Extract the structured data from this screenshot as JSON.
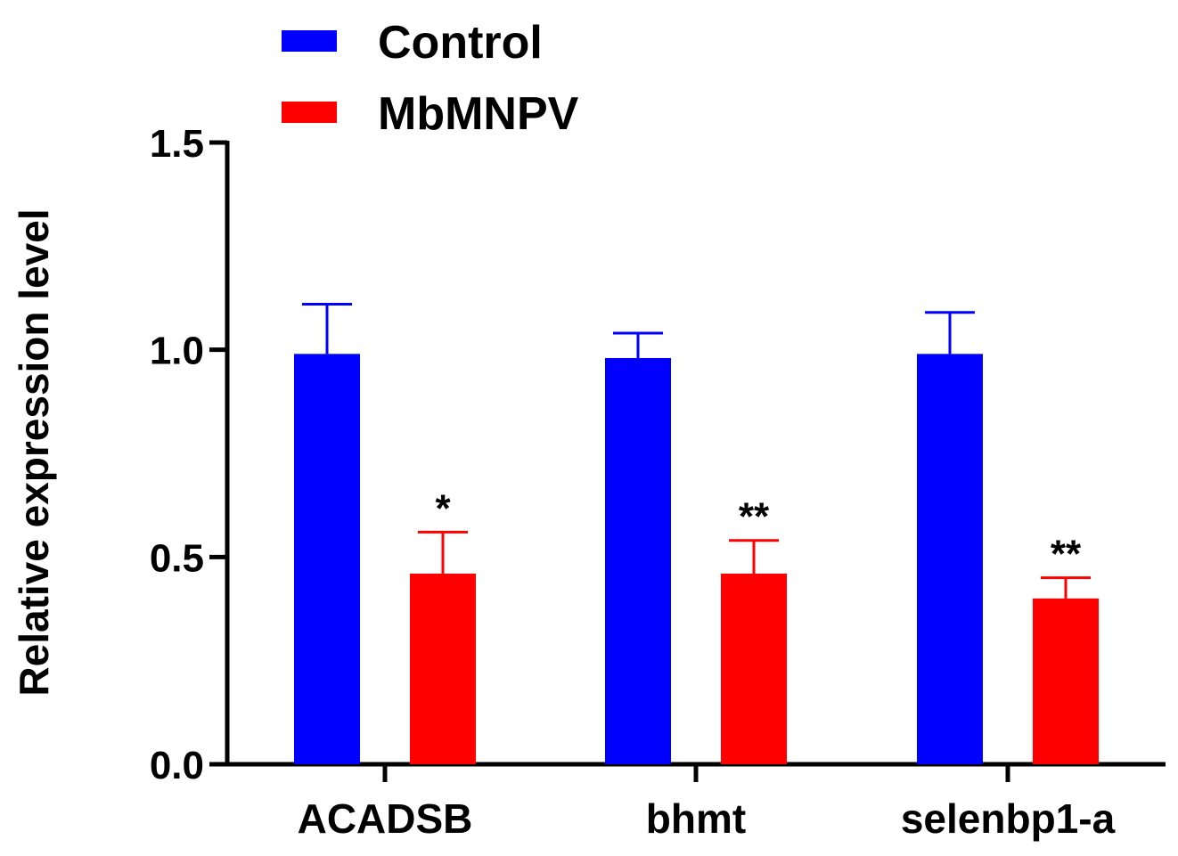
{
  "chart_data": {
    "type": "bar",
    "ylabel": "Relative expression level",
    "ylim": [
      0,
      1.5
    ],
    "yticks": [
      "0.0",
      "0.5",
      "1.0",
      "1.5"
    ],
    "categories": [
      "ACADSB",
      "bhmt",
      "selenbp1-a"
    ],
    "legend_position": "top-left",
    "series": [
      {
        "name": "Control",
        "color": "#0000ff",
        "values": [
          0.99,
          0.98,
          0.99
        ],
        "errors": [
          0.12,
          0.06,
          0.1
        ],
        "significance": [
          "",
          "",
          ""
        ]
      },
      {
        "name": "MbMNPV",
        "color": "#ff0000",
        "values": [
          0.46,
          0.46,
          0.4
        ],
        "errors": [
          0.1,
          0.08,
          0.05
        ],
        "significance": [
          "*",
          "**",
          "**"
        ]
      }
    ]
  }
}
